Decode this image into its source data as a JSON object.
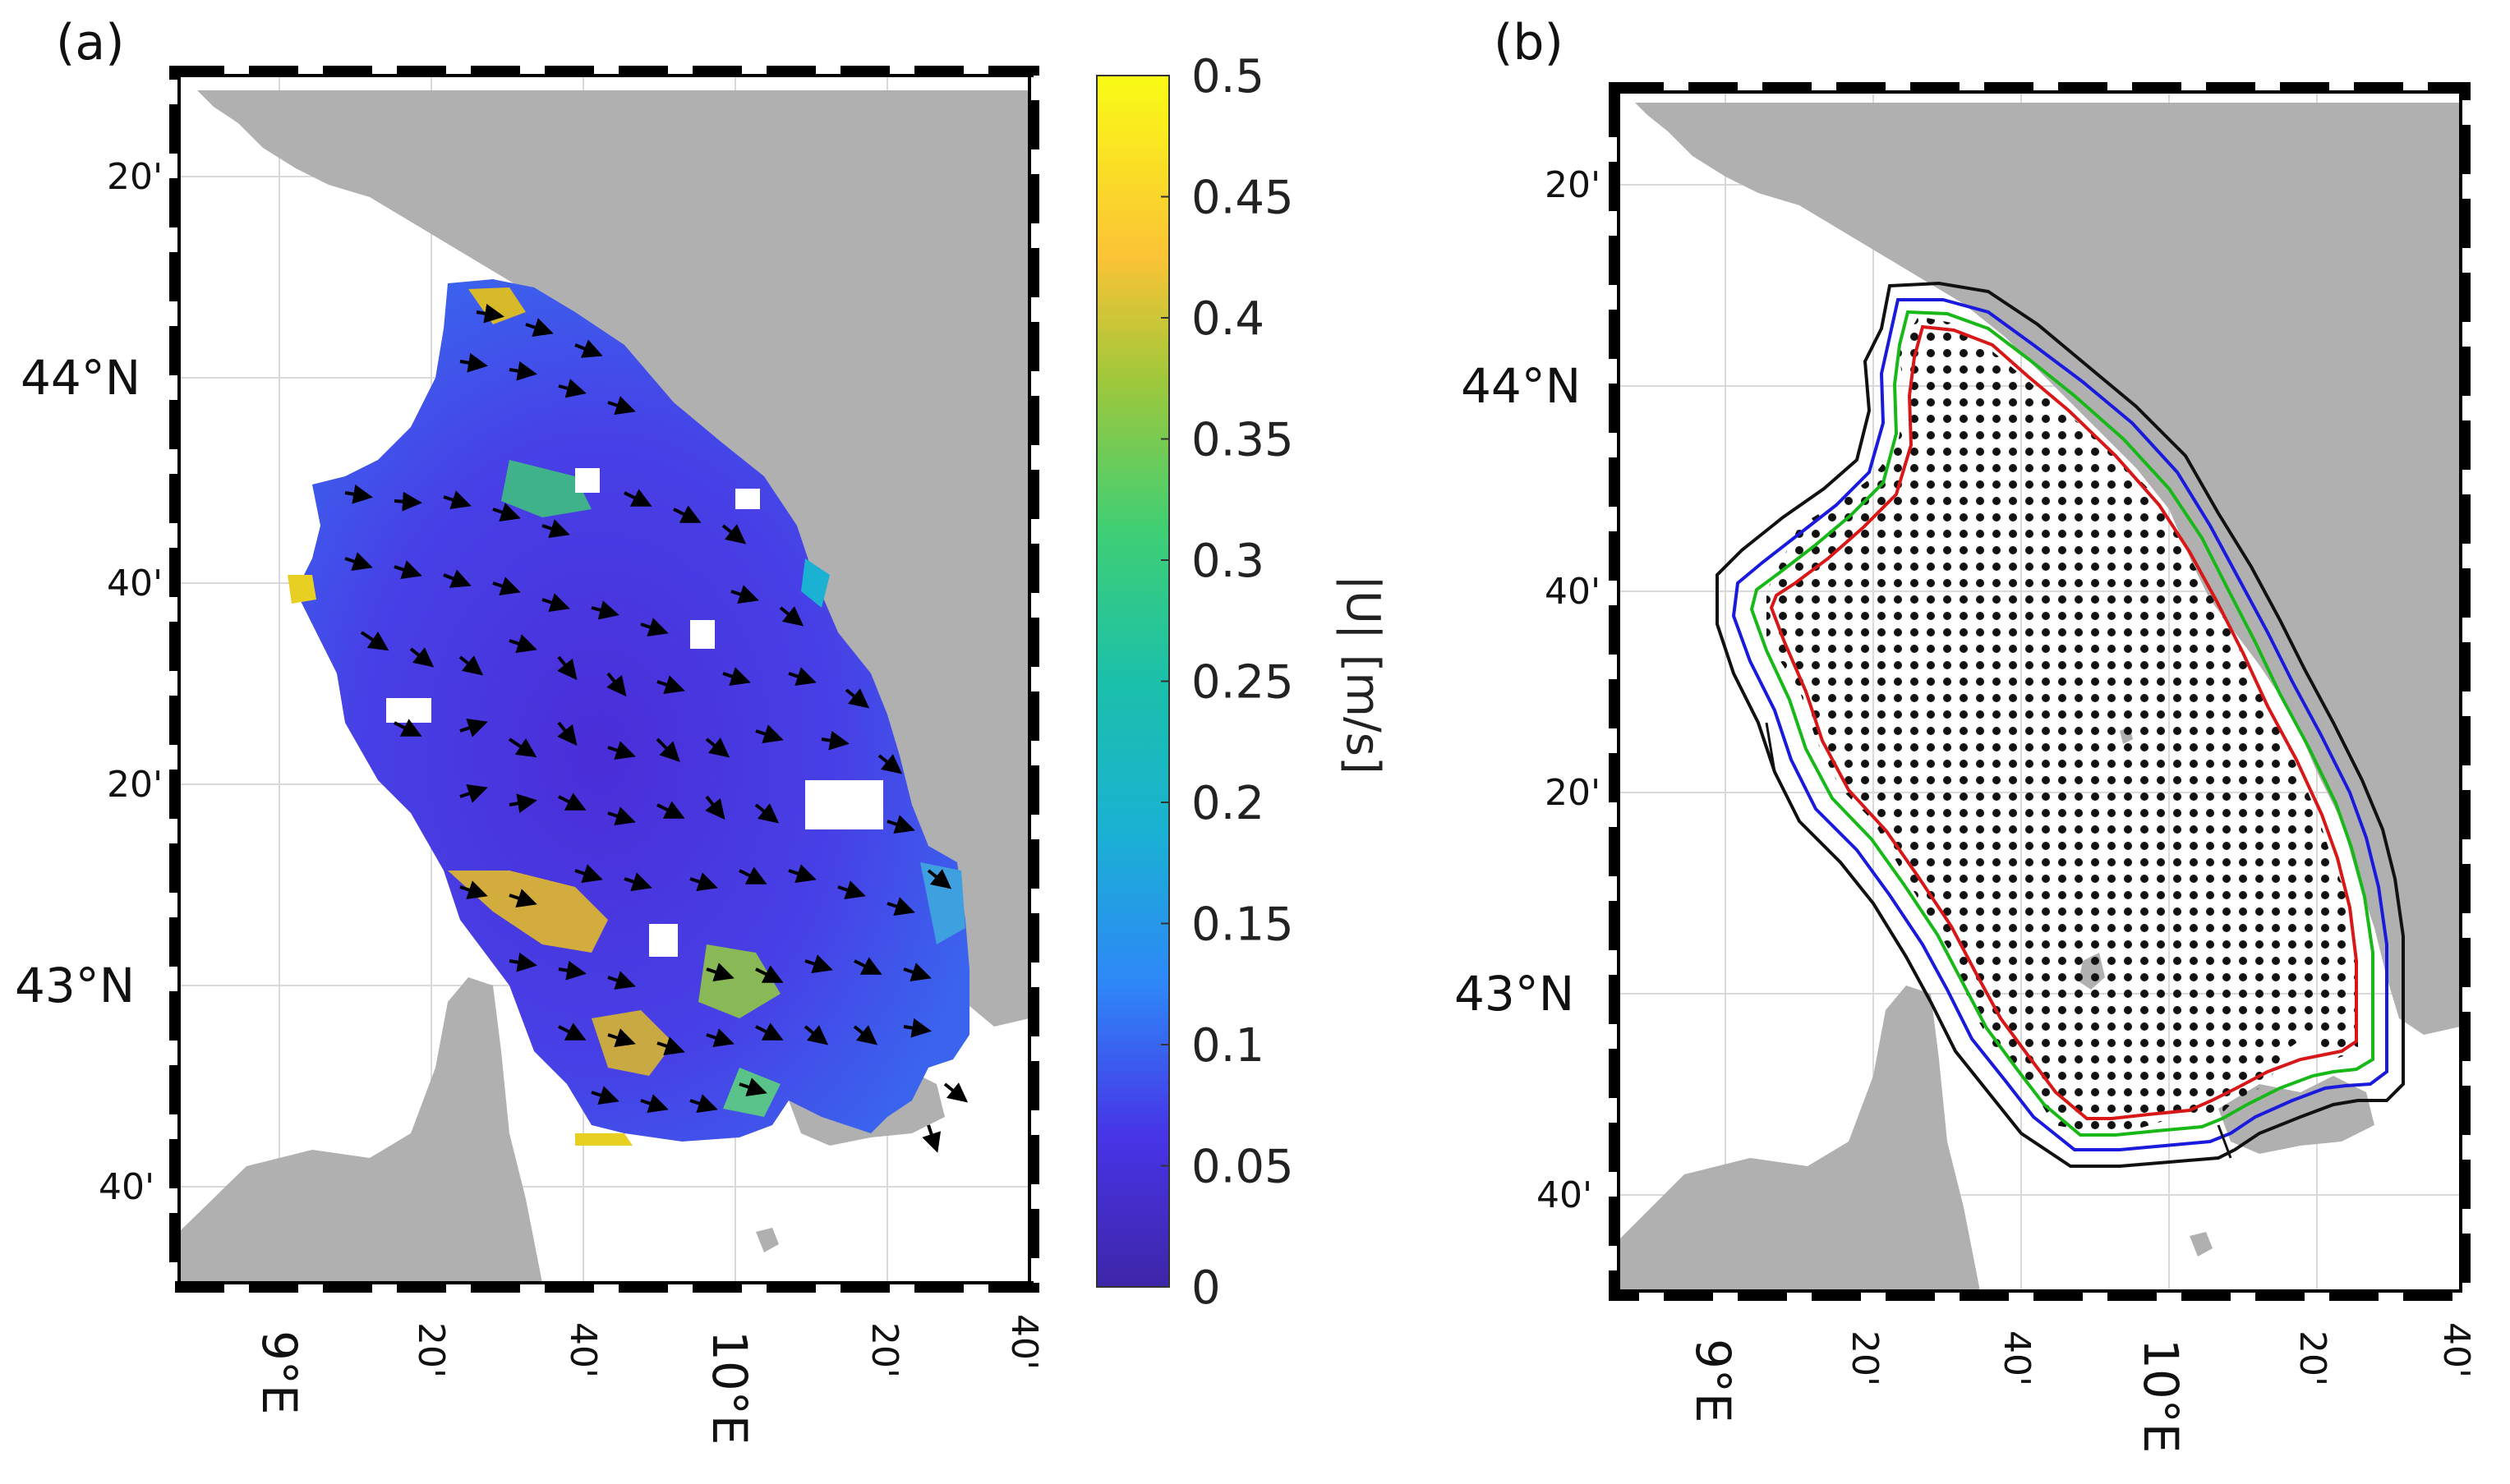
{
  "panels": [
    {
      "label": "(a)",
      "lat_labels": [
        "20'",
        "44°N",
        "40'",
        "20'",
        "43°N",
        "40'"
      ],
      "lon_labels": [
        "9°E",
        "20'",
        "40'",
        "10°E",
        "20'",
        "40'"
      ]
    },
    {
      "label": "(b)",
      "lat_labels": [
        "20'",
        "44°N",
        "40'",
        "20'",
        "43°N",
        "40'"
      ],
      "lon_labels": [
        "9°E",
        "20'",
        "40'",
        "10°E",
        "20'",
        "40'"
      ]
    }
  ],
  "colorbar": {
    "label": "|U| [m/s]",
    "ticks": [
      "0.5",
      "0.45",
      "0.4",
      "0.35",
      "0.3",
      "0.25",
      "0.2",
      "0.15",
      "0.1",
      "0.05",
      "0"
    ],
    "range": [
      0,
      0.5
    ],
    "colors": [
      "#3e26a8",
      "#4734e7",
      "#2e87f7",
      "#1ab1d3",
      "#1bc0aa",
      "#3fcf74",
      "#d5bb21",
      "#fbc336",
      "#f9fb15"
    ]
  },
  "contour_colors": {
    "outer": "#111111",
    "blue": "#1a1adc",
    "green": "#18b818",
    "red": "#d81818"
  },
  "land_color": "#b0b0b0"
}
